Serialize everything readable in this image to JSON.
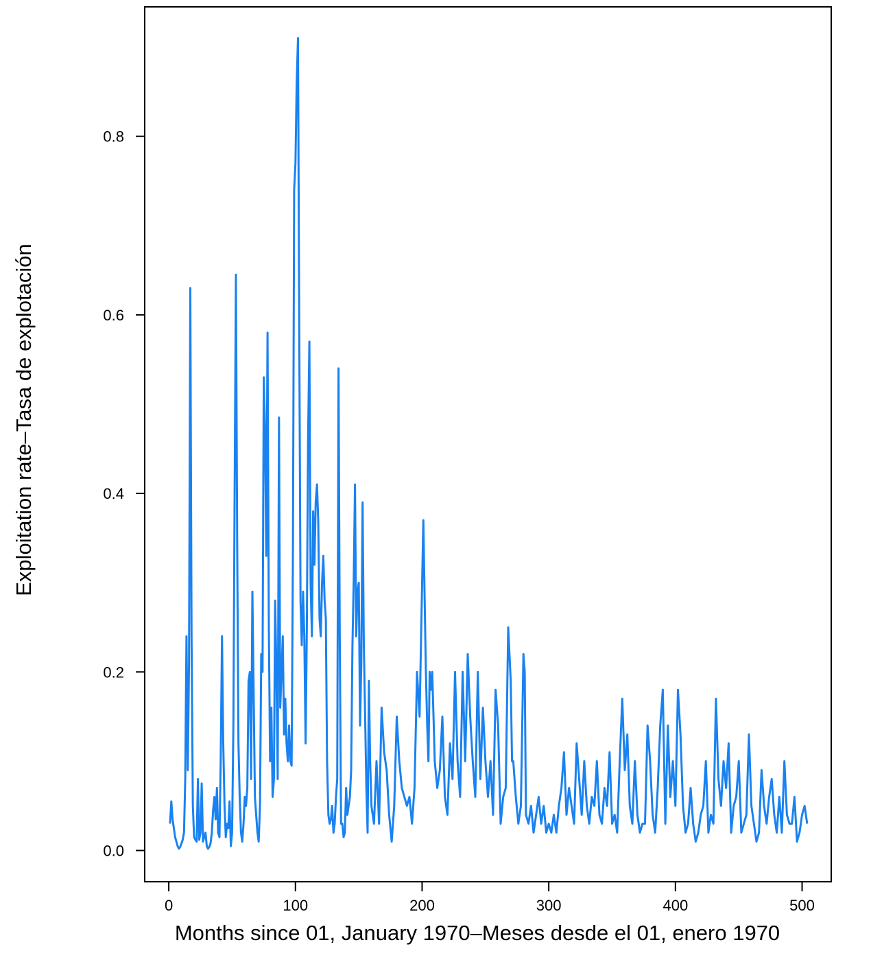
{
  "chart_data": {
    "type": "line",
    "title": "",
    "xlabel": "Months since 01, January 1970–Meses desde el 01, enero 1970",
    "ylabel": "Exploitation rate–Tasa de explotación",
    "xlim": [
      -19,
      523
    ],
    "ylim": [
      -0.035,
      0.945
    ],
    "xticks": [
      0,
      100,
      200,
      300,
      400,
      500
    ],
    "yticks": [
      0.0,
      0.2,
      0.4,
      0.6,
      0.8
    ],
    "xtick_labels": [
      "0",
      "100",
      "200",
      "300",
      "400",
      "500"
    ],
    "ytick_labels": [
      "0.0",
      "0.2",
      "0.4",
      "0.6",
      "0.8"
    ],
    "grid": false,
    "legend": "none",
    "line_color": "#1a82f0",
    "series": [
      {
        "x": [
          1,
          2,
          3,
          4,
          5,
          6,
          7,
          8,
          9,
          10,
          11,
          12,
          13,
          14,
          15,
          16,
          17,
          18,
          19,
          20,
          21,
          22,
          23,
          24,
          25,
          26,
          27,
          28,
          29,
          30,
          31,
          32,
          33,
          34,
          35,
          36,
          37,
          38,
          39,
          40,
          41,
          42,
          43,
          44,
          45,
          46,
          47,
          48,
          49,
          50,
          51,
          52,
          53,
          54,
          55,
          56,
          57,
          58,
          59,
          60,
          61,
          62,
          63,
          64,
          65,
          66,
          67,
          68,
          69,
          70,
          71,
          72,
          73,
          74,
          75,
          76,
          77,
          78,
          79,
          80,
          81,
          82,
          83,
          84,
          85,
          86,
          87,
          88,
          89,
          90,
          91,
          92,
          93,
          94,
          95,
          96,
          97,
          98,
          99,
          100,
          101,
          102,
          103,
          104,
          105,
          106,
          107,
          108,
          109,
          110,
          111,
          112,
          113,
          114,
          115,
          116,
          117,
          118,
          119,
          120,
          121,
          122,
          123,
          124,
          125,
          126,
          127,
          128,
          129,
          130,
          131,
          132,
          133,
          134,
          135,
          136,
          137,
          138,
          139,
          140,
          141,
          142,
          143,
          144,
          145,
          146,
          147,
          148,
          149,
          150,
          151,
          152,
          153,
          154,
          155,
          156,
          157,
          158,
          159,
          160,
          162,
          164,
          166,
          168,
          170,
          172,
          174,
          176,
          178,
          180,
          182,
          184,
          186,
          188,
          190,
          192,
          194,
          196,
          198,
          200,
          201,
          202,
          203,
          204,
          205,
          206,
          207,
          208,
          209,
          210,
          212,
          214,
          216,
          218,
          220,
          222,
          224,
          226,
          228,
          230,
          232,
          234,
          236,
          238,
          240,
          242,
          244,
          246,
          248,
          250,
          252,
          254,
          256,
          258,
          260,
          262,
          264,
          266,
          268,
          270,
          271,
          272,
          274,
          276,
          278,
          280,
          281,
          282,
          284,
          286,
          288,
          290,
          292,
          294,
          296,
          298,
          300,
          302,
          304,
          306,
          308,
          310,
          312,
          314,
          316,
          318,
          320,
          322,
          324,
          326,
          328,
          330,
          332,
          334,
          336,
          338,
          340,
          342,
          344,
          346,
          348,
          350,
          352,
          354,
          356,
          358,
          360,
          362,
          364,
          366,
          368,
          370,
          372,
          374,
          376,
          378,
          380,
          382,
          384,
          386,
          388,
          390,
          392,
          394,
          396,
          398,
          400,
          402,
          404,
          406,
          408,
          410,
          412,
          414,
          416,
          418,
          420,
          422,
          424,
          426,
          428,
          430,
          432,
          434,
          436,
          438,
          440,
          442,
          444,
          446,
          448,
          450,
          452,
          454,
          456,
          458,
          460,
          462,
          464,
          466,
          468,
          470,
          472,
          474,
          476,
          478,
          480,
          482,
          484,
          486,
          488,
          490,
          492,
          494,
          496,
          498,
          500,
          502,
          504
        ],
        "values": [
          0.03,
          0.055,
          0.035,
          0.025,
          0.015,
          0.01,
          0.005,
          0.002,
          0.004,
          0.008,
          0.012,
          0.02,
          0.08,
          0.24,
          0.09,
          0.21,
          0.63,
          0.24,
          0.05,
          0.015,
          0.012,
          0.01,
          0.08,
          0.012,
          0.02,
          0.075,
          0.01,
          0.015,
          0.02,
          0.005,
          0.002,
          0.004,
          0.008,
          0.02,
          0.045,
          0.06,
          0.035,
          0.07,
          0.02,
          0.015,
          0.1,
          0.24,
          0.12,
          0.05,
          0.015,
          0.03,
          0.025,
          0.055,
          0.005,
          0.02,
          0.14,
          0.4,
          0.645,
          0.35,
          0.12,
          0.06,
          0.02,
          0.01,
          0.03,
          0.06,
          0.05,
          0.07,
          0.19,
          0.2,
          0.08,
          0.29,
          0.18,
          0.06,
          0.04,
          0.02,
          0.01,
          0.05,
          0.22,
          0.2,
          0.53,
          0.47,
          0.33,
          0.58,
          0.25,
          0.1,
          0.16,
          0.06,
          0.08,
          0.28,
          0.2,
          0.08,
          0.485,
          0.16,
          0.2,
          0.24,
          0.13,
          0.17,
          0.12,
          0.1,
          0.14,
          0.1,
          0.095,
          0.33,
          0.74,
          0.77,
          0.86,
          0.91,
          0.59,
          0.28,
          0.23,
          0.29,
          0.24,
          0.12,
          0.25,
          0.46,
          0.57,
          0.3,
          0.24,
          0.38,
          0.32,
          0.39,
          0.41,
          0.37,
          0.26,
          0.24,
          0.3,
          0.33,
          0.28,
          0.26,
          0.1,
          0.04,
          0.03,
          0.035,
          0.05,
          0.02,
          0.03,
          0.06,
          0.08,
          0.54,
          0.24,
          0.03,
          0.03,
          0.015,
          0.02,
          0.07,
          0.04,
          0.05,
          0.06,
          0.09,
          0.23,
          0.3,
          0.41,
          0.24,
          0.29,
          0.3,
          0.14,
          0.21,
          0.39,
          0.23,
          0.15,
          0.07,
          0.02,
          0.19,
          0.1,
          0.05,
          0.03,
          0.1,
          0.03,
          0.16,
          0.11,
          0.09,
          0.04,
          0.01,
          0.05,
          0.15,
          0.1,
          0.07,
          0.06,
          0.05,
          0.06,
          0.03,
          0.07,
          0.2,
          0.15,
          0.3,
          0.37,
          0.28,
          0.2,
          0.14,
          0.1,
          0.2,
          0.18,
          0.2,
          0.15,
          0.1,
          0.07,
          0.09,
          0.15,
          0.06,
          0.04,
          0.12,
          0.08,
          0.2,
          0.1,
          0.06,
          0.2,
          0.1,
          0.22,
          0.15,
          0.1,
          0.06,
          0.2,
          0.08,
          0.16,
          0.1,
          0.06,
          0.1,
          0.04,
          0.18,
          0.14,
          0.03,
          0.06,
          0.07,
          0.25,
          0.19,
          0.1,
          0.1,
          0.06,
          0.03,
          0.05,
          0.22,
          0.2,
          0.04,
          0.03,
          0.05,
          0.02,
          0.04,
          0.06,
          0.03,
          0.05,
          0.02,
          0.03,
          0.02,
          0.04,
          0.02,
          0.05,
          0.07,
          0.11,
          0.04,
          0.07,
          0.05,
          0.03,
          0.12,
          0.08,
          0.04,
          0.1,
          0.05,
          0.03,
          0.06,
          0.05,
          0.1,
          0.04,
          0.03,
          0.07,
          0.05,
          0.11,
          0.03,
          0.04,
          0.02,
          0.1,
          0.17,
          0.09,
          0.13,
          0.05,
          0.03,
          0.1,
          0.04,
          0.02,
          0.03,
          0.03,
          0.14,
          0.1,
          0.04,
          0.02,
          0.07,
          0.14,
          0.18,
          0.03,
          0.14,
          0.06,
          0.1,
          0.05,
          0.18,
          0.13,
          0.05,
          0.02,
          0.03,
          0.07,
          0.03,
          0.01,
          0.02,
          0.04,
          0.05,
          0.1,
          0.02,
          0.04,
          0.03,
          0.17,
          0.08,
          0.05,
          0.1,
          0.07,
          0.12,
          0.02,
          0.05,
          0.06,
          0.1,
          0.02,
          0.03,
          0.04,
          0.13,
          0.05,
          0.03,
          0.01,
          0.02,
          0.09,
          0.05,
          0.03,
          0.06,
          0.08,
          0.04,
          0.02,
          0.06,
          0.02,
          0.1,
          0.04,
          0.03,
          0.03,
          0.06,
          0.01,
          0.02,
          0.04,
          0.05,
          0.03
        ]
      }
    ]
  }
}
